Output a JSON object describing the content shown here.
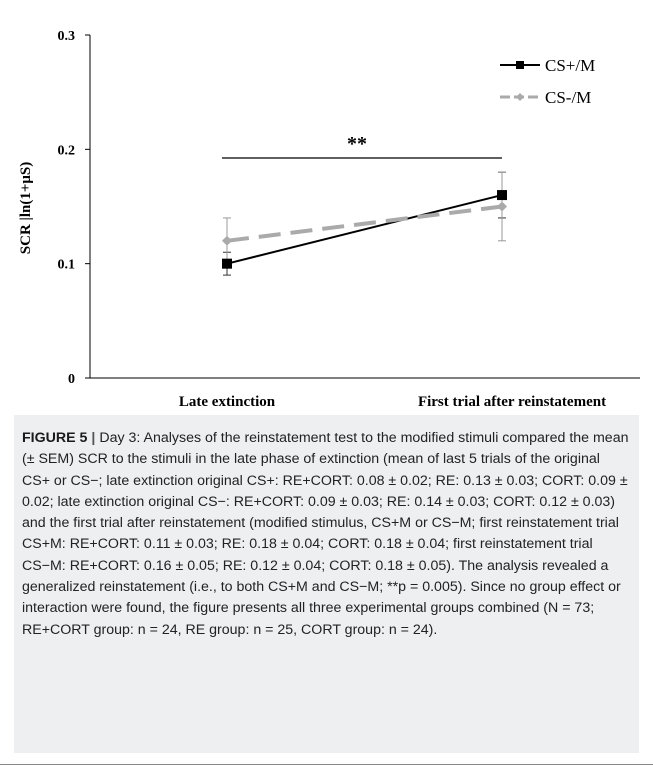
{
  "chart_data": {
    "type": "line",
    "categories": [
      "Late extinction",
      "First trial after reinstatement"
    ],
    "ylabel": "SCR |ln(1+μS)",
    "xlabel": "",
    "ylim": [
      0,
      0.3
    ],
    "yticks": [
      0,
      0.1,
      0.2,
      0.3
    ],
    "ytick_labels": [
      "0",
      "0.1",
      "0.2",
      "0.3"
    ],
    "grid": false,
    "legend_position": "top-right",
    "series": [
      {
        "name": "CS+/M",
        "values": [
          0.1,
          0.16
        ],
        "err": [
          0.01,
          0.02
        ],
        "color": "#000000",
        "dashed": false,
        "marker": "square"
      },
      {
        "name": "CS-/M",
        "values": [
          0.12,
          0.15
        ],
        "err": [
          0.02,
          0.03
        ],
        "color": "#aaaaaa",
        "dashed": true,
        "marker": "diamond"
      }
    ],
    "annotation": "**"
  },
  "caption": {
    "label": "FIGURE 5",
    "separator": "|",
    "text": "Day 3: Analyses of the reinstatement test to the modified stimuli compared the mean (± SEM) SCR to the stimuli in the late phase of extinction (mean of last 5 trials of the original CS+ or CS−; late extinction original CS+: RE+CORT: 0.08 ± 0.02; RE: 0.13 ± 0.03; CORT: 0.09 ± 0.02; late extinction original CS−: RE+CORT: 0.09 ± 0.03; RE: 0.14 ± 0.03; CORT: 0.12 ± 0.03) and the first trial after reinstatement (modified stimulus, CS+M or CS−M; first reinstatement trial CS+M: RE+CORT: 0.11 ± 0.03; RE: 0.18 ± 0.04; CORT: 0.18 ± 0.04; first reinstatement trial CS−M: RE+CORT: 0.16 ± 0.05; RE: 0.12 ± 0.04; CORT: 0.18 ± 0.05). The analysis revealed a generalized reinstatement (i.e., to both CS+M and CS−M; **p = 0.005). Since no group effect or interaction were found, the figure presents all three experimental groups combined (N = 73; RE+CORT group: n = 24, RE group: n = 25, CORT group: n = 24)."
  }
}
